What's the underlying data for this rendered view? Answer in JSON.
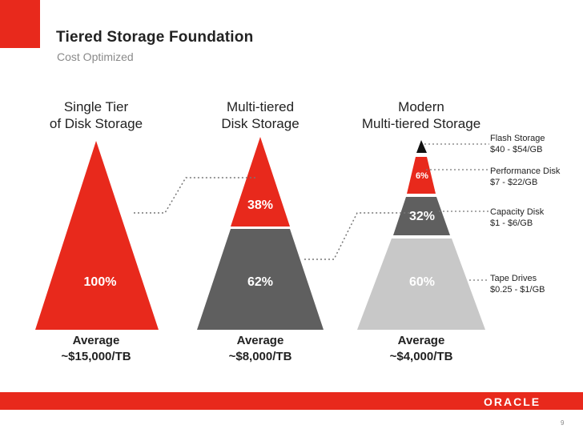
{
  "title": "Tiered Storage Foundation",
  "subtitle": "Cost Optimized",
  "brand": "ORACLE",
  "page_number": "9",
  "colors": {
    "red": "#e8291c",
    "dark_gray": "#5f5f5f",
    "light_gray": "#c8c8c8",
    "black": "#111111"
  },
  "columns": [
    {
      "heading_line1": "Single Tier",
      "heading_line2": "of Disk Storage",
      "segments": [
        {
          "name": "disk",
          "percent": "100%"
        }
      ],
      "average_label": "Average",
      "average_value": "~$15,000/TB"
    },
    {
      "heading_line1": "Multi-tiered",
      "heading_line2": "Disk Storage",
      "segments": [
        {
          "name": "performance-disk",
          "percent": "38%"
        },
        {
          "name": "capacity-disk",
          "percent": "62%"
        }
      ],
      "average_label": "Average",
      "average_value": "~$8,000/TB"
    },
    {
      "heading_line1": "Modern",
      "heading_line2": "Multi-tiered Storage",
      "segments": [
        {
          "name": "flash",
          "percent": ""
        },
        {
          "name": "performance-disk",
          "percent": "6%"
        },
        {
          "name": "capacity-disk",
          "percent": "32%"
        },
        {
          "name": "tape",
          "percent": "60%"
        }
      ],
      "average_label": "Average",
      "average_value": "~$4,000/TB"
    }
  ],
  "tiers": [
    {
      "name": "Flash Storage",
      "price": "$40 - $54/GB"
    },
    {
      "name": "Performance Disk",
      "price": "$7 - $22/GB"
    },
    {
      "name": "Capacity Disk",
      "price": "$1 - $6/GB"
    },
    {
      "name": "Tape Drives",
      "price": "$0.25 - $1/GB"
    }
  ]
}
